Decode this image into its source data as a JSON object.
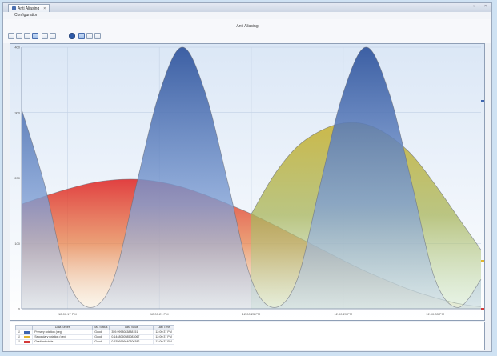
{
  "window": {
    "tab_title": "Anti Aliasing",
    "tab_close": "×",
    "controls": "‹ › ×"
  },
  "menu": {
    "configuration": "Configuration"
  },
  "toolbar": {
    "title": "Anti Aliasing",
    "tools": [
      "select-tool",
      "zoom-tool",
      "pan-tool",
      "box-zoom-tool",
      "crosshair-tool",
      "cursor-tool",
      "legend-tool",
      "fit-tool",
      "export-tool",
      "settings-tool"
    ]
  },
  "legend_table": {
    "headers": [
      "",
      "",
      "Data Series",
      "Ma Status",
      "Last Value",
      "Last Time"
    ],
    "rows": [
      {
        "color": "#3f66b0",
        "name": "Primary rotation (deg)",
        "status": "Good",
        "value": "359.9998083888151",
        "time": "12:00:37 PM"
      },
      {
        "color": "#e2b52c",
        "name": "Secondary rotation (deg)",
        "status": "Good",
        "value": "0.1448050585083067",
        "time": "12:00:37 PM"
      },
      {
        "color": "#d43a3a",
        "name": "Gradient circle",
        "status": "Good",
        "value": "0.5356956640306382",
        "time": "12:00:37 PM"
      }
    ]
  },
  "chart_data": {
    "type": "area",
    "title": "Anti Aliasing",
    "xlabel": "",
    "ylabel": "",
    "x_tick_labels": [
      "12:00:17 PM",
      "12:00:21 PM",
      "12:00:25 PM",
      "12:00:29 PM",
      "12:00:33 PM"
    ],
    "y_tick_labels": [
      "0",
      "100",
      "200",
      "300",
      "400"
    ],
    "ylim": [
      0,
      400
    ],
    "xlim": [
      0,
      100
    ],
    "grid": true,
    "series": [
      {
        "name": "Primary rotation (deg)",
        "color": "#3f66b0",
        "x": [
          0,
          5,
          10,
          15,
          20,
          25,
          30,
          35,
          40,
          45,
          50,
          55,
          60,
          65,
          70,
          75,
          80,
          85,
          90,
          95,
          100
        ],
        "y": [
          305,
          190,
          45,
          2,
          45,
          190,
          330,
          400,
          330,
          190,
          45,
          2,
          45,
          190,
          330,
          400,
          330,
          190,
          45,
          2,
          45
        ]
      },
      {
        "name": "Secondary rotation (deg)",
        "color": "#e2b52c",
        "x": [
          50,
          55,
          60,
          65,
          70,
          75,
          80,
          85,
          90,
          95,
          100
        ],
        "y": [
          145,
          205,
          248,
          272,
          284,
          282,
          265,
          235,
          190,
          140,
          90
        ]
      },
      {
        "name": "Gradient circle",
        "color": "#d43a3a",
        "x": [
          0,
          5,
          10,
          15,
          20,
          25,
          30,
          35,
          40,
          45,
          50,
          55,
          60,
          65,
          70,
          75,
          80,
          85,
          90,
          95,
          100
        ],
        "y": [
          160,
          172,
          183,
          192,
          197,
          198,
          194,
          186,
          174,
          160,
          145,
          128,
          110,
          92,
          74,
          57,
          42,
          28,
          17,
          8,
          3
        ]
      }
    ]
  }
}
